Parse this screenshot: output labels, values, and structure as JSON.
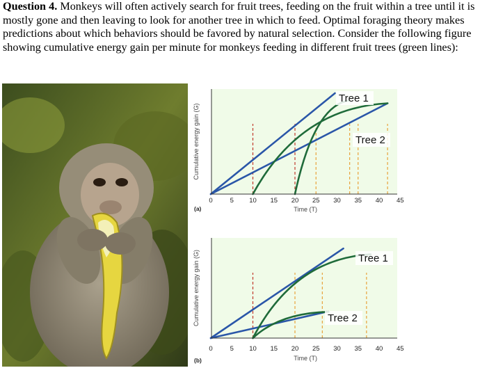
{
  "question": {
    "number": "Question 4.",
    "text": "Monkeys will often actively search for fruit trees, feeding on the fruit within a tree until it is mostly gone and then leaving to look for another tree in which to feed. Optimal foraging theory makes predictions about which behaviors should be favored by natural selection. Consider the following figure showing cumulative energy gain per minute for monkeys feeding in different fruit trees (green lines):"
  },
  "photo": {
    "subject": "macaque monkey eating a banana",
    "icon": "monkey-photo"
  },
  "colors": {
    "blue_line": "#2a56a8",
    "green_curve": "#1f6b3a",
    "red_marker": "#c0392b",
    "orange_marker": "#e8a23a",
    "panel_bg": "#f0fbe8",
    "axis": "#333333"
  },
  "chart_data": [
    {
      "type": "line",
      "panel_label": "(a)",
      "xlabel": "Time (T)",
      "ylabel": "Cumulative energy gain (G)",
      "xlim": [
        0,
        45
      ],
      "x_ticks": [
        "0",
        "5",
        "10",
        "15",
        "20",
        "25",
        "30",
        "35",
        "40",
        "45"
      ],
      "grid": false,
      "series": [
        {
          "name": "Tree 1",
          "kind": "green-curve",
          "start_x": 20,
          "end_x": 33,
          "end_y": 0.93
        },
        {
          "name": "Tree 2",
          "kind": "green-curve",
          "start_x": 10,
          "end_x": 42,
          "end_y": 0.9
        }
      ],
      "lines": [
        {
          "kind": "blue-tangent",
          "x": [
            0,
            29.5
          ],
          "y": [
            0,
            1.0
          ]
        },
        {
          "kind": "blue-tangent",
          "x": [
            0,
            42
          ],
          "y": [
            0,
            0.9
          ]
        }
      ],
      "markers": [
        {
          "color": "red",
          "x": 10
        },
        {
          "color": "red",
          "x": 20
        },
        {
          "color": "orange",
          "x": 25
        },
        {
          "color": "orange",
          "x": 33
        },
        {
          "color": "orange",
          "x": 35
        },
        {
          "color": "orange",
          "x": 42
        }
      ]
    },
    {
      "type": "line",
      "panel_label": "(b)",
      "xlabel": "Time (T)",
      "ylabel": "Cumulative energy gain (G)",
      "xlim": [
        0,
        45
      ],
      "x_ticks": [
        "0",
        "5",
        "10",
        "15",
        "20",
        "25",
        "30",
        "35",
        "40",
        "45"
      ],
      "grid": false,
      "series": [
        {
          "name": "Tree 1",
          "kind": "green-curve",
          "start_x": 10,
          "end_x": 38,
          "end_y": 0.86
        },
        {
          "name": "Tree 2",
          "kind": "green-curve",
          "start_x": 10,
          "end_x": 28,
          "end_y": 0.27
        }
      ],
      "lines": [
        {
          "kind": "blue-tangent",
          "x": [
            0,
            31.5
          ],
          "y": [
            0,
            0.92
          ]
        },
        {
          "kind": "blue-tangent",
          "x": [
            0,
            27.5
          ],
          "y": [
            0,
            0.27
          ]
        }
      ],
      "markers": [
        {
          "color": "red",
          "x": 10
        },
        {
          "color": "orange",
          "x": 20
        },
        {
          "color": "orange",
          "x": 26.5
        },
        {
          "color": "orange",
          "x": 37
        }
      ]
    }
  ]
}
